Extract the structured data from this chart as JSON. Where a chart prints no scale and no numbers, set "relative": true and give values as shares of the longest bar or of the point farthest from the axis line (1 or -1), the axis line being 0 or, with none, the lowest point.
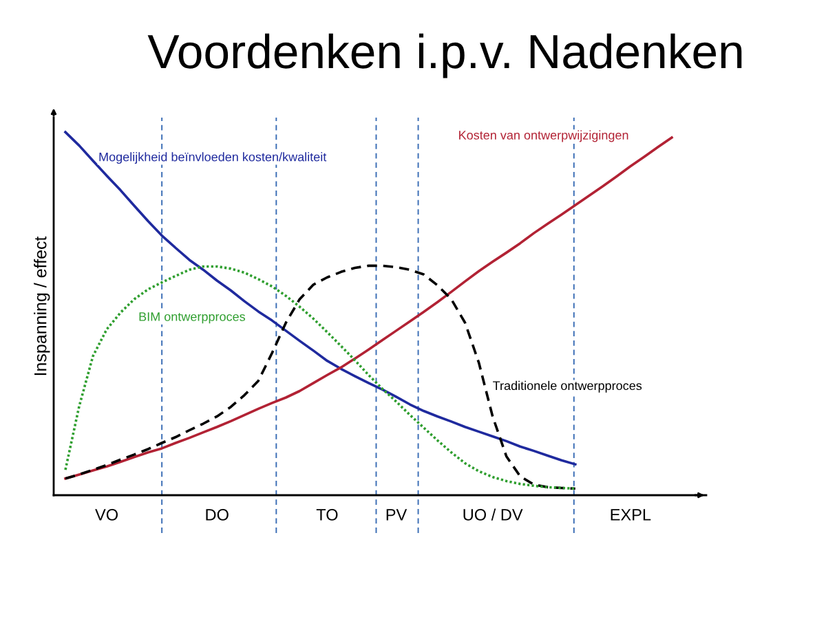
{
  "chart_data": {
    "type": "line",
    "title": "Voordenken i.p.v. Nadenken",
    "ylabel": "Inspanning / effect",
    "relative": true,
    "tick_labels": "x",
    "categories": [
      null,
      null,
      null,
      "VO",
      null,
      null,
      null,
      null,
      null,
      null,
      null,
      "DO",
      null,
      null,
      null,
      null,
      null,
      null,
      null,
      "TO",
      null,
      null,
      null,
      null,
      "PV",
      null,
      null,
      null,
      null,
      null,
      null,
      "UO / DV",
      null,
      null,
      null,
      null,
      null,
      null,
      null,
      null,
      null,
      "EXPL",
      null,
      null,
      null
    ],
    "series": [
      {
        "name": "Mogelijkheid beïnvloeden kosten/kwaliteit",
        "color": "#1f2a9e",
        "line_style": "solid",
        "values": [
          1.0,
          0.963,
          0.921,
          0.88,
          0.84,
          0.797,
          0.755,
          0.715,
          0.681,
          0.648,
          0.621,
          0.591,
          0.564,
          0.534,
          0.506,
          0.481,
          0.453,
          0.425,
          0.398,
          0.37,
          0.348,
          0.328,
          0.309,
          0.291,
          0.271,
          0.25,
          0.232,
          0.217,
          0.203,
          0.188,
          0.175,
          0.162,
          0.149,
          0.134,
          0.122,
          0.109,
          0.096,
          0.085,
          null,
          null,
          null,
          null,
          null,
          null,
          null
        ]
      },
      {
        "name": "Kosten van ontwerpwijzigingen",
        "color": "#b22234",
        "line_style": "solid",
        "values": [
          0.046,
          0.057,
          0.068,
          0.079,
          0.092,
          0.105,
          0.118,
          0.129,
          0.144,
          0.158,
          0.173,
          0.188,
          0.204,
          0.221,
          0.238,
          0.254,
          0.269,
          0.287,
          0.309,
          0.331,
          0.352,
          0.376,
          0.401,
          0.427,
          0.453,
          0.479,
          0.505,
          0.532,
          0.56,
          0.589,
          0.617,
          0.643,
          0.668,
          0.694,
          0.722,
          0.748,
          0.773,
          0.799,
          0.825,
          0.851,
          0.878,
          0.906,
          0.932,
          0.959,
          0.985
        ]
      },
      {
        "name": "BIM ontwerpproces",
        "color": "#2e9e2e",
        "line_style": "dotted",
        "values": [
          0.07,
          0.245,
          0.383,
          0.457,
          0.503,
          0.54,
          0.567,
          0.586,
          0.604,
          0.621,
          0.63,
          0.63,
          0.624,
          0.613,
          0.595,
          0.575,
          0.549,
          0.519,
          0.486,
          0.449,
          0.411,
          0.372,
          0.331,
          0.293,
          0.258,
          0.221,
          0.186,
          0.151,
          0.118,
          0.088,
          0.066,
          0.05,
          0.039,
          0.031,
          0.026,
          0.022,
          0.02,
          0.018,
          null,
          null,
          null,
          null,
          null,
          null,
          null
        ]
      },
      {
        "name": "Traditionele ontwerpproces",
        "color": "#000000",
        "line_style": "dashed",
        "values": [
          0.046,
          0.057,
          0.07,
          0.083,
          0.098,
          0.112,
          0.127,
          0.144,
          0.16,
          0.179,
          0.197,
          0.217,
          0.243,
          0.276,
          0.315,
          0.392,
          0.475,
          0.54,
          0.58,
          0.6,
          0.615,
          0.626,
          0.632,
          0.632,
          0.628,
          0.621,
          0.608,
          0.578,
          0.54,
          0.475,
          0.365,
          0.217,
          0.107,
          0.052,
          0.029,
          0.022,
          0.02,
          0.018,
          null,
          null,
          null,
          null,
          null,
          null,
          null
        ]
      }
    ]
  }
}
